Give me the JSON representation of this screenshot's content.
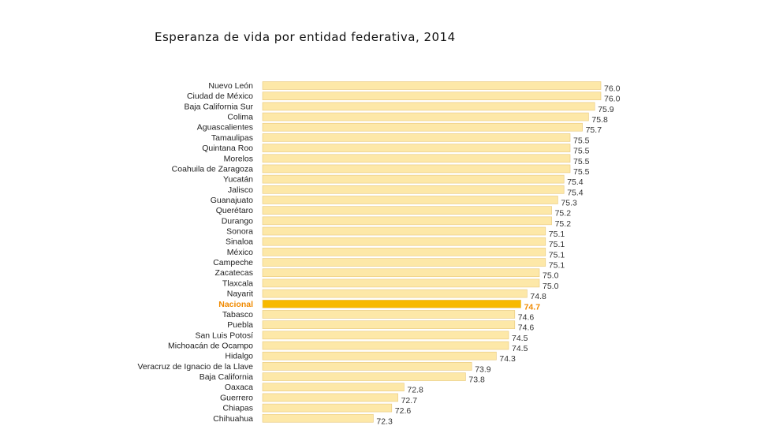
{
  "chart_data": {
    "type": "bar",
    "orientation": "horizontal",
    "title": "Esperanza de vida por entidad federativa, 2014",
    "xlabel": "",
    "ylabel": "",
    "xlim": [
      70.5,
      76.0
    ],
    "highlight_category": "Nacional",
    "colors": {
      "bar": "#fde8a8",
      "bar_highlight": "#f7b900",
      "label_highlight": "#f08a00"
    },
    "categories": [
      "Nuevo León",
      "Ciudad de México",
      "Baja California Sur",
      "Colima",
      "Aguascalientes",
      "Tamaulipas",
      "Quintana Roo",
      "Morelos",
      "Coahuila de Zaragoza",
      "Yucatán",
      "Jalisco",
      "Guanajuato",
      "Querétaro",
      "Durango",
      "Sonora",
      "Sinaloa",
      "México",
      "Campeche",
      "Zacatecas",
      "Tlaxcala",
      "Nayarit",
      "Nacional",
      "Tabasco",
      "Puebla",
      "San Luis Potosí",
      "Michoacán de Ocampo",
      "Hidalgo",
      "Veracruz de Ignacio de la Llave",
      "Baja California",
      "Oaxaca",
      "Guerrero",
      "Chiapas",
      "Chihuahua"
    ],
    "values": [
      76.0,
      76.0,
      75.9,
      75.8,
      75.7,
      75.5,
      75.5,
      75.5,
      75.5,
      75.4,
      75.4,
      75.3,
      75.2,
      75.2,
      75.1,
      75.1,
      75.1,
      75.1,
      75.0,
      75.0,
      74.8,
      74.7,
      74.6,
      74.6,
      74.5,
      74.5,
      74.3,
      73.9,
      73.8,
      72.8,
      72.7,
      72.6,
      72.3
    ]
  }
}
